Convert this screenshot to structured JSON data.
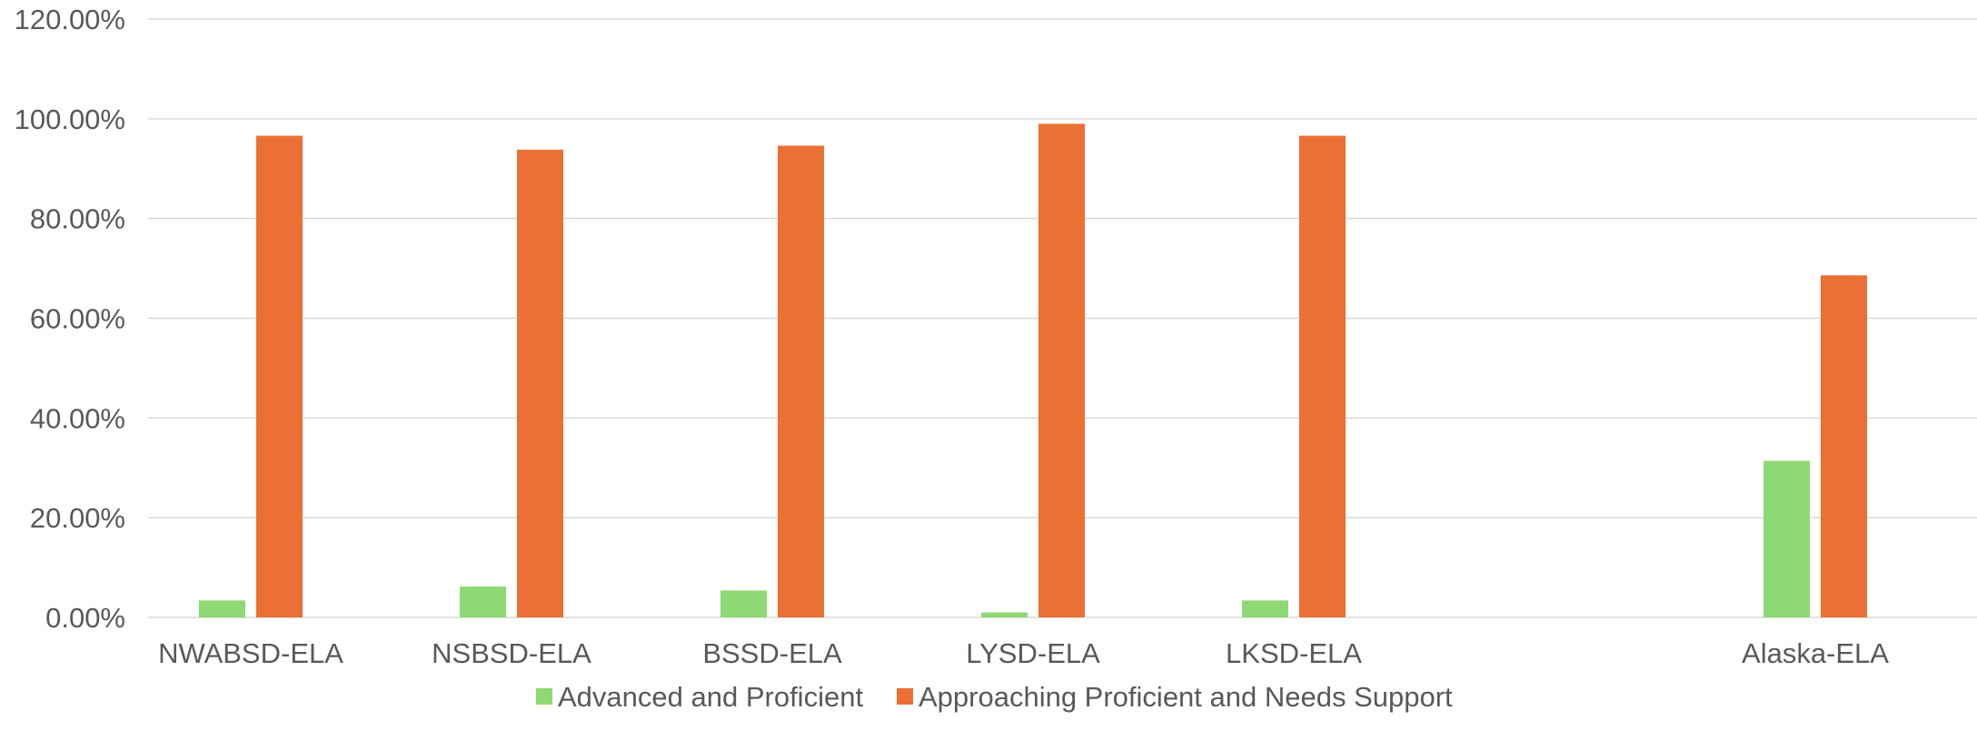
{
  "chart_data": {
    "type": "bar",
    "categories": [
      "NWABSD-ELA",
      "NSBSD-ELA",
      "BSSD-ELA",
      "LYSD-ELA",
      "LKSD-ELA",
      "",
      "Alaska-ELA"
    ],
    "series": [
      {
        "name": "Advanced and Proficient",
        "color": "#8FD974",
        "values": [
          3.4,
          6.2,
          5.4,
          1.0,
          3.4,
          null,
          31.4
        ]
      },
      {
        "name": "Approaching Proficient and Needs Support",
        "color": "#EB7033",
        "values": [
          96.6,
          93.8,
          94.6,
          99.0,
          96.6,
          null,
          68.6
        ]
      }
    ],
    "ylim": [
      0,
      120
    ],
    "ytick_step": 20,
    "ytick_labels": [
      "0.00%",
      "20.00%",
      "40.00%",
      "60.00%",
      "80.00%",
      "100.00%",
      "120.00%"
    ],
    "grid": true,
    "gridline_color": "#D9D9D9",
    "legend_position": "bottom",
    "title": "",
    "xlabel": "",
    "ylabel": ""
  }
}
